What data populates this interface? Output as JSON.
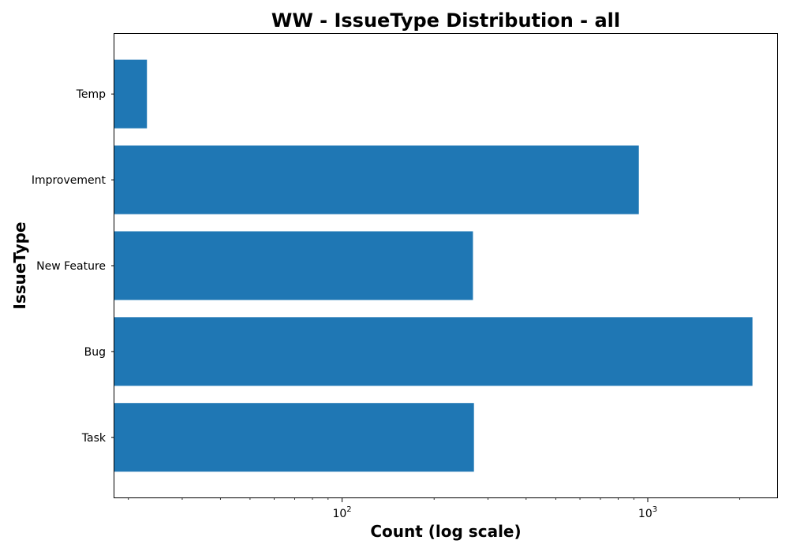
{
  "chart_data": {
    "type": "bar",
    "orientation": "horizontal",
    "title": "WW - IssueType Distribution - all",
    "xlabel": "Count (log scale)",
    "ylabel": "IssueType",
    "x_scale": "log",
    "xlim": [
      18,
      2650
    ],
    "categories": [
      "Task",
      "Bug",
      "New Feature",
      "Improvement",
      "Temp"
    ],
    "values": [
      270,
      2200,
      268,
      935,
      23
    ],
    "bar_color": "#1f77b4",
    "x_major_ticks": [
      {
        "value": 100,
        "base": "10",
        "exp": "2"
      },
      {
        "value": 1000,
        "base": "10",
        "exp": "3"
      }
    ],
    "grid": false,
    "legend": "none"
  }
}
